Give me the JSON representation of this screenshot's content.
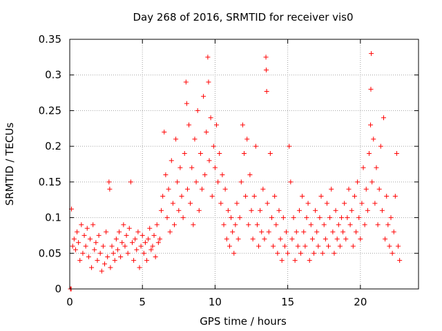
{
  "chart_data": {
    "type": "scatter",
    "title": "Day 268 of 2016, SRMTID for receiver vis0",
    "xlabel": "GPS time / hours",
    "ylabel": "SRMTID / TECUs",
    "xlim": [
      0,
      24
    ],
    "ylim": [
      0,
      0.35
    ],
    "grid": true,
    "marker": "+",
    "color": "#ff0000",
    "xticks": [
      0,
      5,
      10,
      15,
      20
    ],
    "xtick_labels": [
      "0",
      "5",
      "10",
      "15",
      "20"
    ],
    "yticks": [
      0,
      0.05,
      0.1,
      0.15,
      0.2,
      0.25,
      0.3,
      0.35
    ],
    "ytick_labels": [
      "0",
      "0.05",
      "0.1",
      "0.15",
      "0.2",
      "0.25",
      "0.3",
      "0.35"
    ],
    "series": [
      {
        "name": "SRMTID",
        "points": [
          [
            0.05,
            0.0
          ],
          [
            0.1,
            0.0
          ],
          [
            0.12,
            0.112
          ],
          [
            0.2,
            0.06
          ],
          [
            0.3,
            0.07
          ],
          [
            0.4,
            0.055
          ],
          [
            0.5,
            0.08
          ],
          [
            0.6,
            0.065
          ],
          [
            0.7,
            0.04
          ],
          [
            0.8,
            0.09
          ],
          [
            0.9,
            0.05
          ],
          [
            1.0,
            0.075
          ],
          [
            1.1,
            0.06
          ],
          [
            1.2,
            0.085
          ],
          [
            1.3,
            0.045
          ],
          [
            1.4,
            0.07
          ],
          [
            1.5,
            0.03
          ],
          [
            1.6,
            0.09
          ],
          [
            1.7,
            0.055
          ],
          [
            1.8,
            0.065
          ],
          [
            1.9,
            0.04
          ],
          [
            2.0,
            0.075
          ],
          [
            2.1,
            0.05
          ],
          [
            2.2,
            0.025
          ],
          [
            2.3,
            0.06
          ],
          [
            2.4,
            0.035
          ],
          [
            2.5,
            0.08
          ],
          [
            2.6,
            0.045
          ],
          [
            2.7,
            0.15
          ],
          [
            2.75,
            0.14
          ],
          [
            2.8,
            0.03
          ],
          [
            2.9,
            0.06
          ],
          [
            3.0,
            0.05
          ],
          [
            3.1,
            0.04
          ],
          [
            3.2,
            0.07
          ],
          [
            3.3,
            0.055
          ],
          [
            3.4,
            0.08
          ],
          [
            3.5,
            0.045
          ],
          [
            3.6,
            0.065
          ],
          [
            3.7,
            0.09
          ],
          [
            3.8,
            0.06
          ],
          [
            3.9,
            0.075
          ],
          [
            4.0,
            0.05
          ],
          [
            4.1,
            0.085
          ],
          [
            4.2,
            0.15
          ],
          [
            4.3,
            0.065
          ],
          [
            4.4,
            0.04
          ],
          [
            4.5,
            0.07
          ],
          [
            4.6,
            0.055
          ],
          [
            4.7,
            0.08
          ],
          [
            4.8,
            0.03
          ],
          [
            4.9,
            0.06
          ],
          [
            5.0,
            0.075
          ],
          [
            5.1,
            0.05
          ],
          [
            5.2,
            0.065
          ],
          [
            5.3,
            0.04
          ],
          [
            5.4,
            0.07
          ],
          [
            5.5,
            0.085
          ],
          [
            5.6,
            0.055
          ],
          [
            5.7,
            0.06
          ],
          [
            5.8,
            0.075
          ],
          [
            5.9,
            0.045
          ],
          [
            6.0,
            0.09
          ],
          [
            6.1,
            0.065
          ],
          [
            6.2,
            0.07
          ],
          [
            6.3,
            0.11
          ],
          [
            6.4,
            0.13
          ],
          [
            6.5,
            0.22
          ],
          [
            6.6,
            0.16
          ],
          [
            6.7,
            0.1
          ],
          [
            6.8,
            0.14
          ],
          [
            6.9,
            0.08
          ],
          [
            7.0,
            0.18
          ],
          [
            7.1,
            0.12
          ],
          [
            7.2,
            0.09
          ],
          [
            7.3,
            0.21
          ],
          [
            7.4,
            0.15
          ],
          [
            7.5,
            0.11
          ],
          [
            7.6,
            0.17
          ],
          [
            7.7,
            0.13
          ],
          [
            7.8,
            0.1
          ],
          [
            7.9,
            0.19
          ],
          [
            8.0,
            0.29
          ],
          [
            8.05,
            0.26
          ],
          [
            8.1,
            0.14
          ],
          [
            8.2,
            0.23
          ],
          [
            8.3,
            0.12
          ],
          [
            8.4,
            0.17
          ],
          [
            8.5,
            0.09
          ],
          [
            8.6,
            0.21
          ],
          [
            8.7,
            0.15
          ],
          [
            8.8,
            0.25
          ],
          [
            8.9,
            0.11
          ],
          [
            9.0,
            0.19
          ],
          [
            9.1,
            0.14
          ],
          [
            9.2,
            0.27
          ],
          [
            9.3,
            0.16
          ],
          [
            9.4,
            0.22
          ],
          [
            9.5,
            0.325
          ],
          [
            9.55,
            0.29
          ],
          [
            9.6,
            0.18
          ],
          [
            9.7,
            0.24
          ],
          [
            9.8,
            0.13
          ],
          [
            9.9,
            0.2
          ],
          [
            10.0,
            0.17
          ],
          [
            10.1,
            0.23
          ],
          [
            10.2,
            0.15
          ],
          [
            10.3,
            0.19
          ],
          [
            10.4,
            0.12
          ],
          [
            10.5,
            0.16
          ],
          [
            10.6,
            0.09
          ],
          [
            10.7,
            0.14
          ],
          [
            10.8,
            0.07
          ],
          [
            10.9,
            0.11
          ],
          [
            11.0,
            0.06
          ],
          [
            11.1,
            0.1
          ],
          [
            11.2,
            0.08
          ],
          [
            11.3,
            0.05
          ],
          [
            11.4,
            0.09
          ],
          [
            11.5,
            0.12
          ],
          [
            11.6,
            0.07
          ],
          [
            11.7,
            0.1
          ],
          [
            11.8,
            0.15
          ],
          [
            11.9,
            0.23
          ],
          [
            12.0,
            0.19
          ],
          [
            12.1,
            0.13
          ],
          [
            12.2,
            0.21
          ],
          [
            12.3,
            0.09
          ],
          [
            12.4,
            0.16
          ],
          [
            12.5,
            0.11
          ],
          [
            12.6,
            0.07
          ],
          [
            12.7,
            0.13
          ],
          [
            12.8,
            0.2
          ],
          [
            12.9,
            0.09
          ],
          [
            13.0,
            0.06
          ],
          [
            13.1,
            0.11
          ],
          [
            13.2,
            0.08
          ],
          [
            13.3,
            0.14
          ],
          [
            13.4,
            0.07
          ],
          [
            13.5,
            0.325
          ],
          [
            13.52,
            0.307
          ],
          [
            13.55,
            0.277
          ],
          [
            13.6,
            0.12
          ],
          [
            13.7,
            0.08
          ],
          [
            13.8,
            0.19
          ],
          [
            13.9,
            0.1
          ],
          [
            14.0,
            0.06
          ],
          [
            14.1,
            0.13
          ],
          [
            14.2,
            0.09
          ],
          [
            14.3,
            0.05
          ],
          [
            14.4,
            0.11
          ],
          [
            14.5,
            0.07
          ],
          [
            14.6,
            0.04
          ],
          [
            14.7,
            0.1
          ],
          [
            14.8,
            0.06
          ],
          [
            14.9,
            0.08
          ],
          [
            15.0,
            0.05
          ],
          [
            15.1,
            0.2
          ],
          [
            15.2,
            0.15
          ],
          [
            15.3,
            0.07
          ],
          [
            15.4,
            0.1
          ],
          [
            15.5,
            0.04
          ],
          [
            15.6,
            0.08
          ],
          [
            15.7,
            0.06
          ],
          [
            15.8,
            0.11
          ],
          [
            15.9,
            0.05
          ],
          [
            16.0,
            0.13
          ],
          [
            16.1,
            0.08
          ],
          [
            16.2,
            0.06
          ],
          [
            16.3,
            0.1
          ],
          [
            16.4,
            0.12
          ],
          [
            16.5,
            0.04
          ],
          [
            16.6,
            0.09
          ],
          [
            16.7,
            0.07
          ],
          [
            16.8,
            0.05
          ],
          [
            16.9,
            0.11
          ],
          [
            17.0,
            0.08
          ],
          [
            17.1,
            0.06
          ],
          [
            17.2,
            0.1
          ],
          [
            17.3,
            0.13
          ],
          [
            17.4,
            0.05
          ],
          [
            17.5,
            0.09
          ],
          [
            17.6,
            0.07
          ],
          [
            17.7,
            0.12
          ],
          [
            17.8,
            0.06
          ],
          [
            17.9,
            0.1
          ],
          [
            18.0,
            0.14
          ],
          [
            18.1,
            0.08
          ],
          [
            18.2,
            0.05
          ],
          [
            18.3,
            0.11
          ],
          [
            18.4,
            0.07
          ],
          [
            18.5,
            0.09
          ],
          [
            18.6,
            0.06
          ],
          [
            18.7,
            0.1
          ],
          [
            18.8,
            0.08
          ],
          [
            18.9,
            0.12
          ],
          [
            19.0,
            0.07
          ],
          [
            19.1,
            0.1
          ],
          [
            19.2,
            0.14
          ],
          [
            19.3,
            0.09
          ],
          [
            19.4,
            0.11
          ],
          [
            19.5,
            0.06
          ],
          [
            19.6,
            0.13
          ],
          [
            19.7,
            0.08
          ],
          [
            19.8,
            0.15
          ],
          [
            19.9,
            0.1
          ],
          [
            20.0,
            0.07
          ],
          [
            20.1,
            0.12
          ],
          [
            20.2,
            0.17
          ],
          [
            20.3,
            0.09
          ],
          [
            20.4,
            0.14
          ],
          [
            20.5,
            0.11
          ],
          [
            20.6,
            0.19
          ],
          [
            20.7,
            0.23
          ],
          [
            20.72,
            0.28
          ],
          [
            20.75,
            0.33
          ],
          [
            20.8,
            0.15
          ],
          [
            20.9,
            0.21
          ],
          [
            21.0,
            0.12
          ],
          [
            21.1,
            0.17
          ],
          [
            21.2,
            0.09
          ],
          [
            21.3,
            0.14
          ],
          [
            21.4,
            0.2
          ],
          [
            21.5,
            0.11
          ],
          [
            21.6,
            0.24
          ],
          [
            21.7,
            0.07
          ],
          [
            21.8,
            0.13
          ],
          [
            21.9,
            0.09
          ],
          [
            22.0,
            0.06
          ],
          [
            22.1,
            0.1
          ],
          [
            22.2,
            0.05
          ],
          [
            22.3,
            0.08
          ],
          [
            22.4,
            0.13
          ],
          [
            22.5,
            0.19
          ],
          [
            22.6,
            0.06
          ],
          [
            22.7,
            0.04
          ]
        ]
      }
    ]
  }
}
